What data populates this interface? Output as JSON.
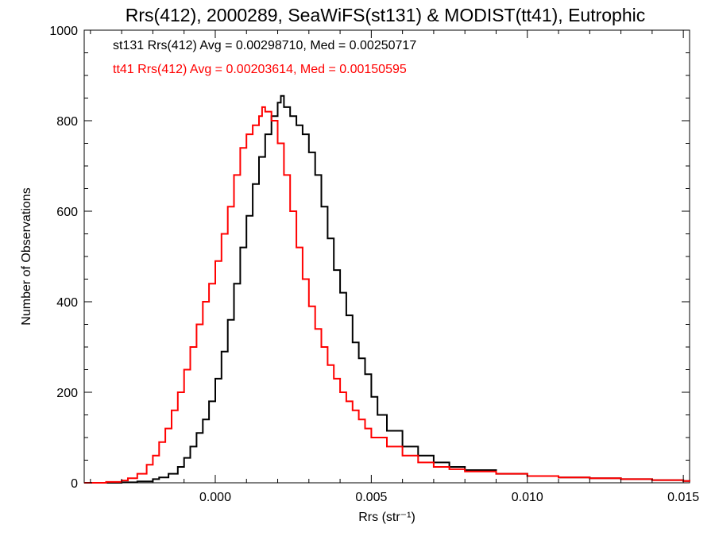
{
  "chart_data": {
    "type": "line",
    "title": "Rrs(412), 2000289, SeaWiFS(st131) & MODIST(tt41), Eutrophic",
    "xlabel": "Rrs (str⁻¹)",
    "ylabel": "Number of Observations",
    "xlim": [
      -0.0042,
      0.0152
    ],
    "ylim": [
      0,
      1000
    ],
    "xticks": [
      0.0,
      0.005,
      0.01,
      0.015
    ],
    "xtick_labels": [
      "0.000",
      "0.005",
      "0.010",
      "0.015"
    ],
    "yticks": [
      0,
      200,
      400,
      600,
      800,
      1000
    ],
    "ytick_labels": [
      "0",
      "200",
      "400",
      "600",
      "800",
      "1000"
    ],
    "grid": false,
    "annotations": [
      {
        "text": "st131 Rrs(412) Avg = 0.00298710, Med = 0.00250717",
        "color": "#000000"
      },
      {
        "text": "tt41 Rrs(412) Avg = 0.00203614, Med = 0.00150595",
        "color": "#ff0000"
      }
    ],
    "series": [
      {
        "color": "#000000",
        "x": [
          -0.0042,
          -0.0035,
          -0.003,
          -0.0025,
          -0.002,
          -0.0018,
          -0.0015,
          -0.0012,
          -0.001,
          -0.0008,
          -0.0006,
          -0.0004,
          -0.0002,
          0.0,
          0.0002,
          0.0004,
          0.0006,
          0.0008,
          0.001,
          0.0012,
          0.0014,
          0.0016,
          0.0018,
          0.002,
          0.0021,
          0.0022,
          0.0024,
          0.0026,
          0.0028,
          0.003,
          0.0032,
          0.0034,
          0.0036,
          0.0038,
          0.004,
          0.0042,
          0.0044,
          0.0046,
          0.0048,
          0.005,
          0.0052,
          0.0055,
          0.006,
          0.0065,
          0.007,
          0.0075,
          0.008,
          0.009,
          0.01,
          0.011,
          0.012,
          0.013,
          0.014,
          0.015,
          0.0152
        ],
        "y": [
          0,
          0,
          1,
          3,
          8,
          12,
          20,
          35,
          55,
          80,
          110,
          140,
          180,
          230,
          290,
          360,
          440,
          520,
          590,
          660,
          720,
          770,
          810,
          840,
          855,
          830,
          810,
          790,
          770,
          730,
          680,
          610,
          540,
          470,
          420,
          370,
          310,
          275,
          240,
          190,
          150,
          115,
          80,
          60,
          45,
          35,
          28,
          20,
          15,
          12,
          10,
          8,
          6,
          4,
          3
        ]
      },
      {
        "color": "#ff0000",
        "x": [
          -0.0042,
          -0.0035,
          -0.003,
          -0.0028,
          -0.0025,
          -0.0022,
          -0.002,
          -0.0018,
          -0.0016,
          -0.0014,
          -0.0012,
          -0.001,
          -0.0008,
          -0.0006,
          -0.0004,
          -0.0002,
          0.0,
          0.0002,
          0.0004,
          0.0006,
          0.0008,
          0.001,
          0.0012,
          0.0014,
          0.0015,
          0.0016,
          0.0018,
          0.002,
          0.0022,
          0.0024,
          0.0026,
          0.0028,
          0.003,
          0.0032,
          0.0034,
          0.0036,
          0.0038,
          0.004,
          0.0042,
          0.0044,
          0.0046,
          0.0048,
          0.005,
          0.0055,
          0.006,
          0.0065,
          0.007,
          0.0075,
          0.008,
          0.009,
          0.01,
          0.011,
          0.012,
          0.013,
          0.014,
          0.015,
          0.0152
        ],
        "y": [
          0,
          2,
          5,
          10,
          20,
          40,
          60,
          90,
          120,
          160,
          200,
          250,
          300,
          350,
          400,
          440,
          490,
          550,
          610,
          680,
          740,
          770,
          790,
          810,
          830,
          820,
          800,
          750,
          680,
          600,
          520,
          450,
          390,
          340,
          300,
          260,
          230,
          200,
          180,
          160,
          140,
          120,
          100,
          80,
          60,
          45,
          35,
          30,
          25,
          20,
          15,
          12,
          10,
          8,
          6,
          4,
          3
        ]
      }
    ]
  }
}
